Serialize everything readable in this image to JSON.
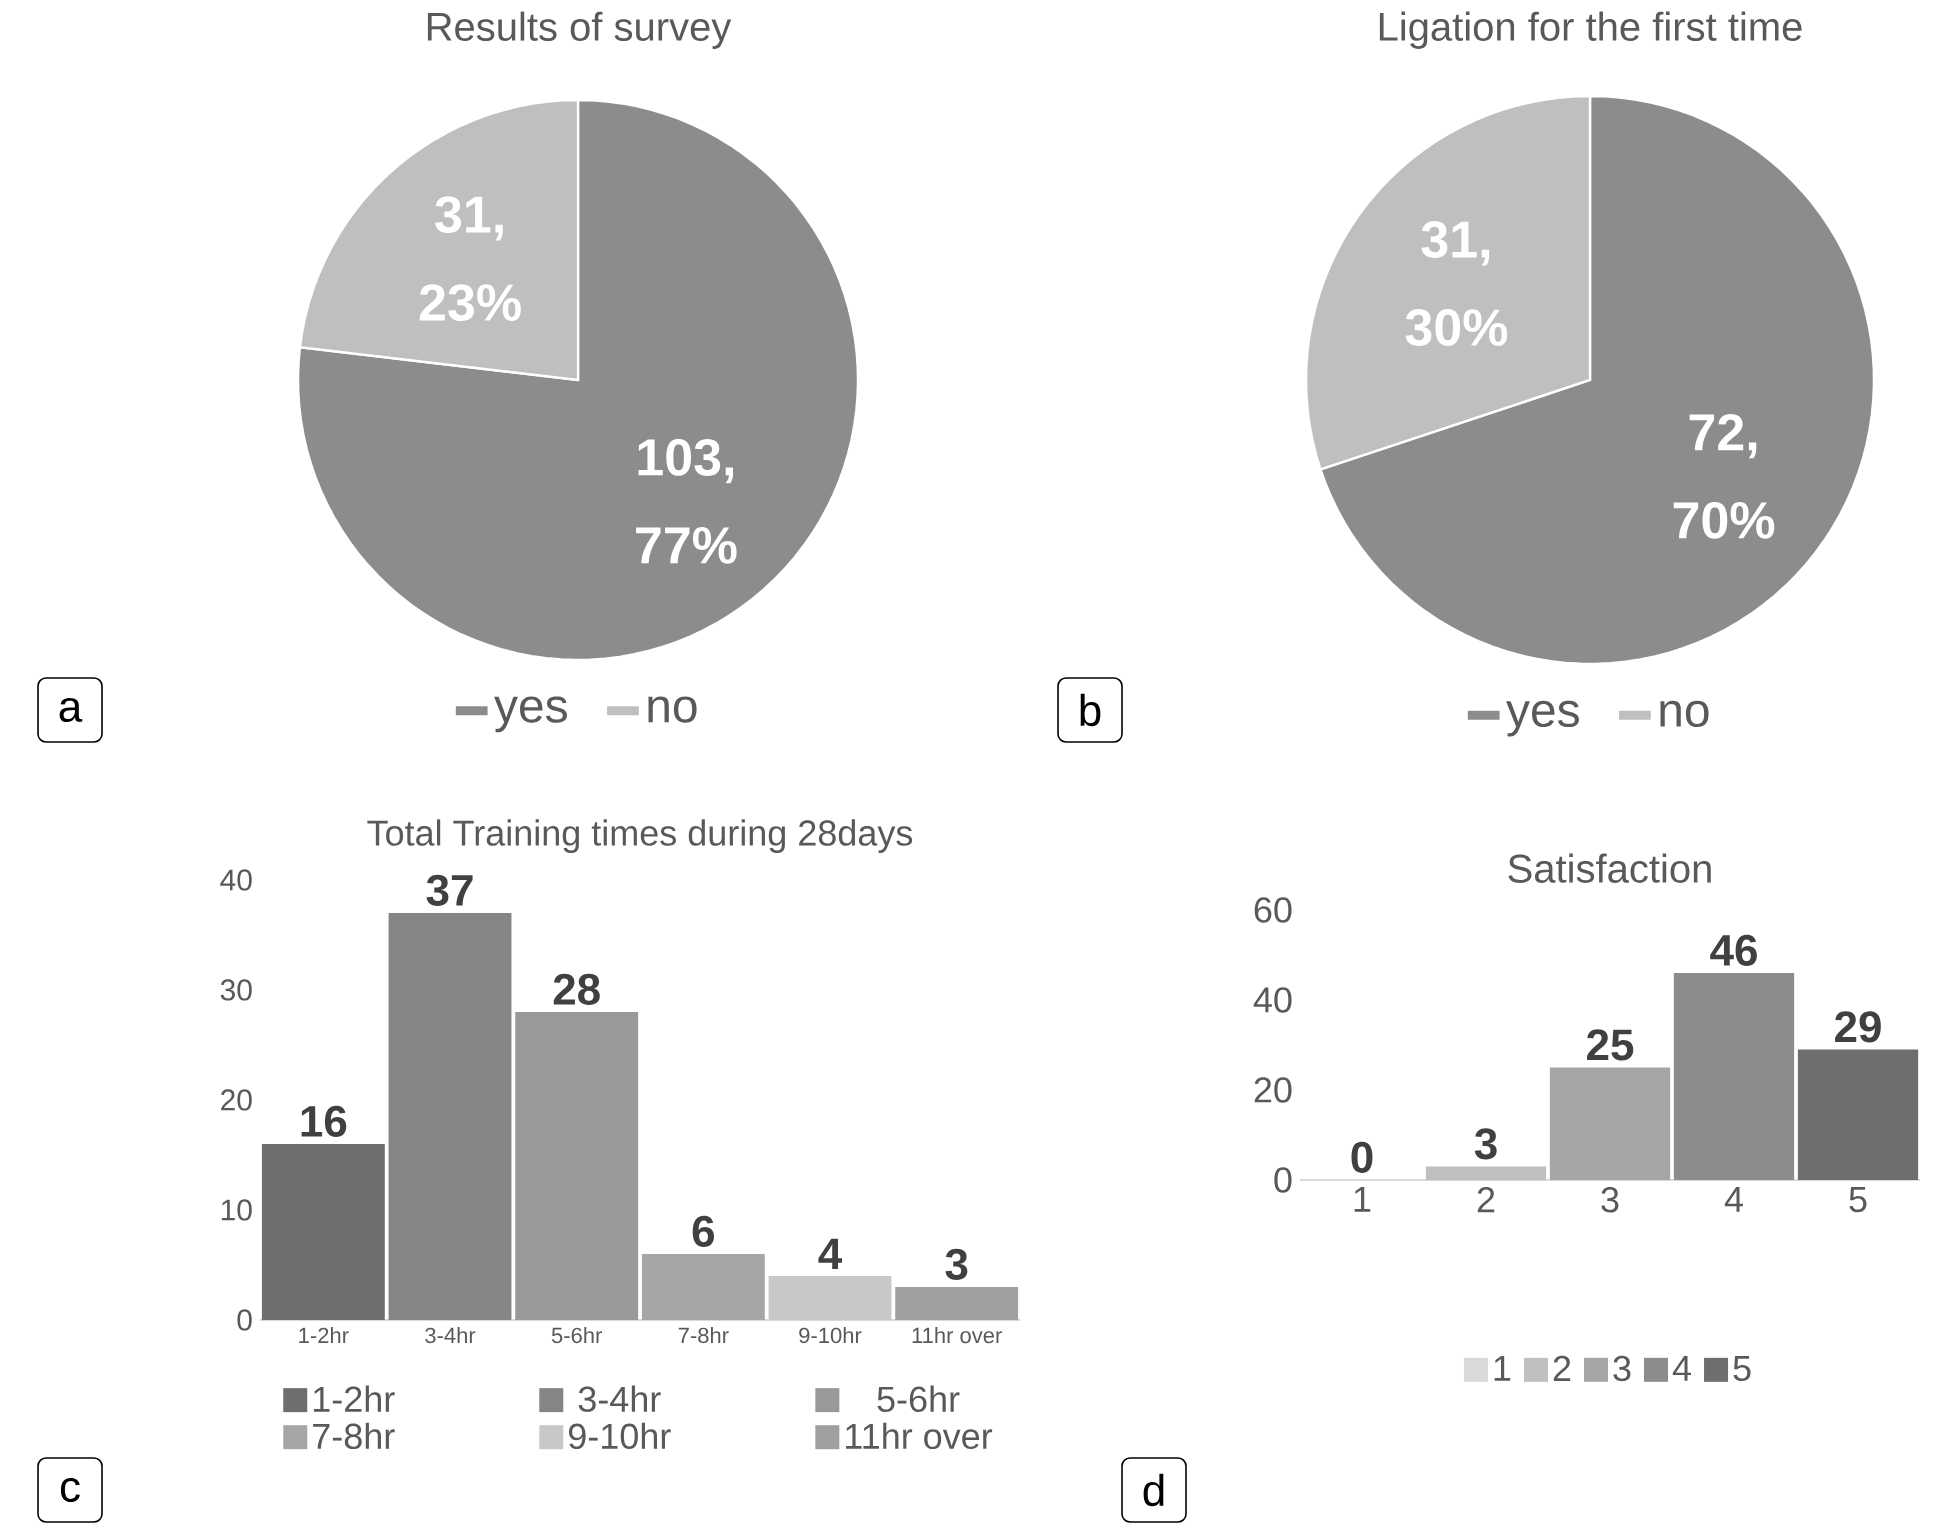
{
  "chart_data": [
    {
      "type": "pie",
      "title": "Results of survey",
      "categories": [
        "yes",
        "no"
      ],
      "values": [
        103,
        31
      ],
      "colors": [
        "#8c8c8c",
        "#bfbfbf"
      ],
      "value_labels": [
        "103, 77%",
        "31, 23%"
      ],
      "legend": "bottom",
      "annotations": [
        "a"
      ]
    },
    {
      "type": "pie",
      "title": "Ligation for the first time",
      "categories": [
        "yes",
        "no"
      ],
      "values": [
        72,
        31
      ],
      "colors": [
        "#8c8c8c",
        "#bfbfbf"
      ],
      "value_labels": [
        "72, 70%",
        "31, 30%"
      ],
      "legend": "bottom",
      "annotations": [
        "b"
      ]
    },
    {
      "type": "bar",
      "title": "Total Training times during 28days",
      "categories": [
        "1-2hr",
        "3-4hr",
        "5-6hr",
        "7-8hr",
        "9-10hr",
        "11hr over"
      ],
      "series": [
        {
          "name": "1-2hr",
          "color": "#6e6e6e",
          "values": [
            16,
            null,
            null,
            null,
            null,
            null
          ]
        },
        {
          "name": "3-4hr",
          "color": "#858585",
          "values": [
            null,
            37,
            null,
            null,
            null,
            null
          ]
        },
        {
          "name": "5-6hr",
          "color": "#999999",
          "values": [
            null,
            null,
            28,
            null,
            null,
            null
          ]
        },
        {
          "name": "7-8hr",
          "color": "#a6a6a6",
          "values": [
            null,
            null,
            null,
            6,
            null,
            null
          ]
        },
        {
          "name": "9-10hr",
          "color": "#c8c8c8",
          "values": [
            null,
            null,
            null,
            null,
            4,
            null
          ]
        },
        {
          "name": "11hr over",
          "color": "#a0a0a0",
          "values": [
            null,
            null,
            null,
            null,
            null,
            3
          ]
        }
      ],
      "ylim": [
        0,
        40
      ],
      "yticks": [
        0,
        10,
        20,
        30,
        40
      ],
      "data_labels": true,
      "legend": "bottom",
      "annotations": [
        "c"
      ]
    },
    {
      "type": "bar",
      "title": "Satisfaction",
      "categories": [
        "1",
        "2",
        "3",
        "4",
        "5"
      ],
      "series": [
        {
          "name": "1",
          "color": "#d9d9d9",
          "values": [
            0,
            null,
            null,
            null,
            null
          ]
        },
        {
          "name": "2",
          "color": "#bfbfbf",
          "values": [
            null,
            3,
            null,
            null,
            null
          ]
        },
        {
          "name": "3",
          "color": "#a6a6a6",
          "values": [
            null,
            null,
            25,
            null,
            null
          ]
        },
        {
          "name": "4",
          "color": "#8c8c8c",
          "values": [
            null,
            null,
            null,
            46,
            null
          ]
        },
        {
          "name": "5",
          "color": "#6e6e6e",
          "values": [
            null,
            null,
            null,
            null,
            29
          ]
        }
      ],
      "ylim": [
        0,
        60
      ],
      "yticks": [
        0,
        20,
        40,
        60
      ],
      "data_labels": true,
      "legend": "bottom",
      "annotations": [
        "d"
      ]
    }
  ]
}
